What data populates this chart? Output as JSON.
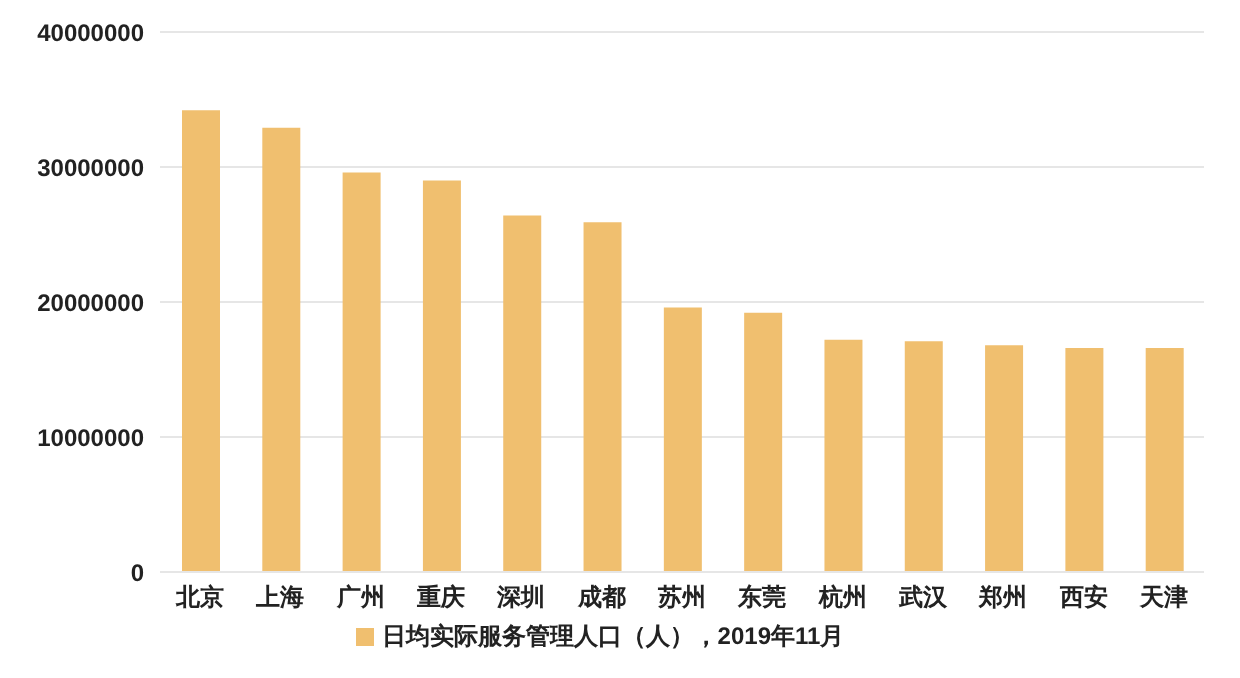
{
  "chart_data": {
    "type": "bar",
    "categories": [
      "北京",
      "上海",
      "广州",
      "重庆",
      "深圳",
      "成都",
      "苏州",
      "东莞",
      "杭州",
      "武汉",
      "郑州",
      "西安",
      "天津"
    ],
    "series": [
      {
        "name": "日均实际服务管理人口（人），2019年11月",
        "color": "#f0bf6f",
        "values": [
          34200000,
          32900000,
          29600000,
          29000000,
          26400000,
          25900000,
          19600000,
          19200000,
          17200000,
          17100000,
          16800000,
          16600000,
          16600000
        ]
      }
    ],
    "ylim": [
      0,
      40000000
    ],
    "yticks": [
      0,
      10000000,
      20000000,
      30000000,
      40000000
    ],
    "grid": "y",
    "legend": "bottom"
  }
}
